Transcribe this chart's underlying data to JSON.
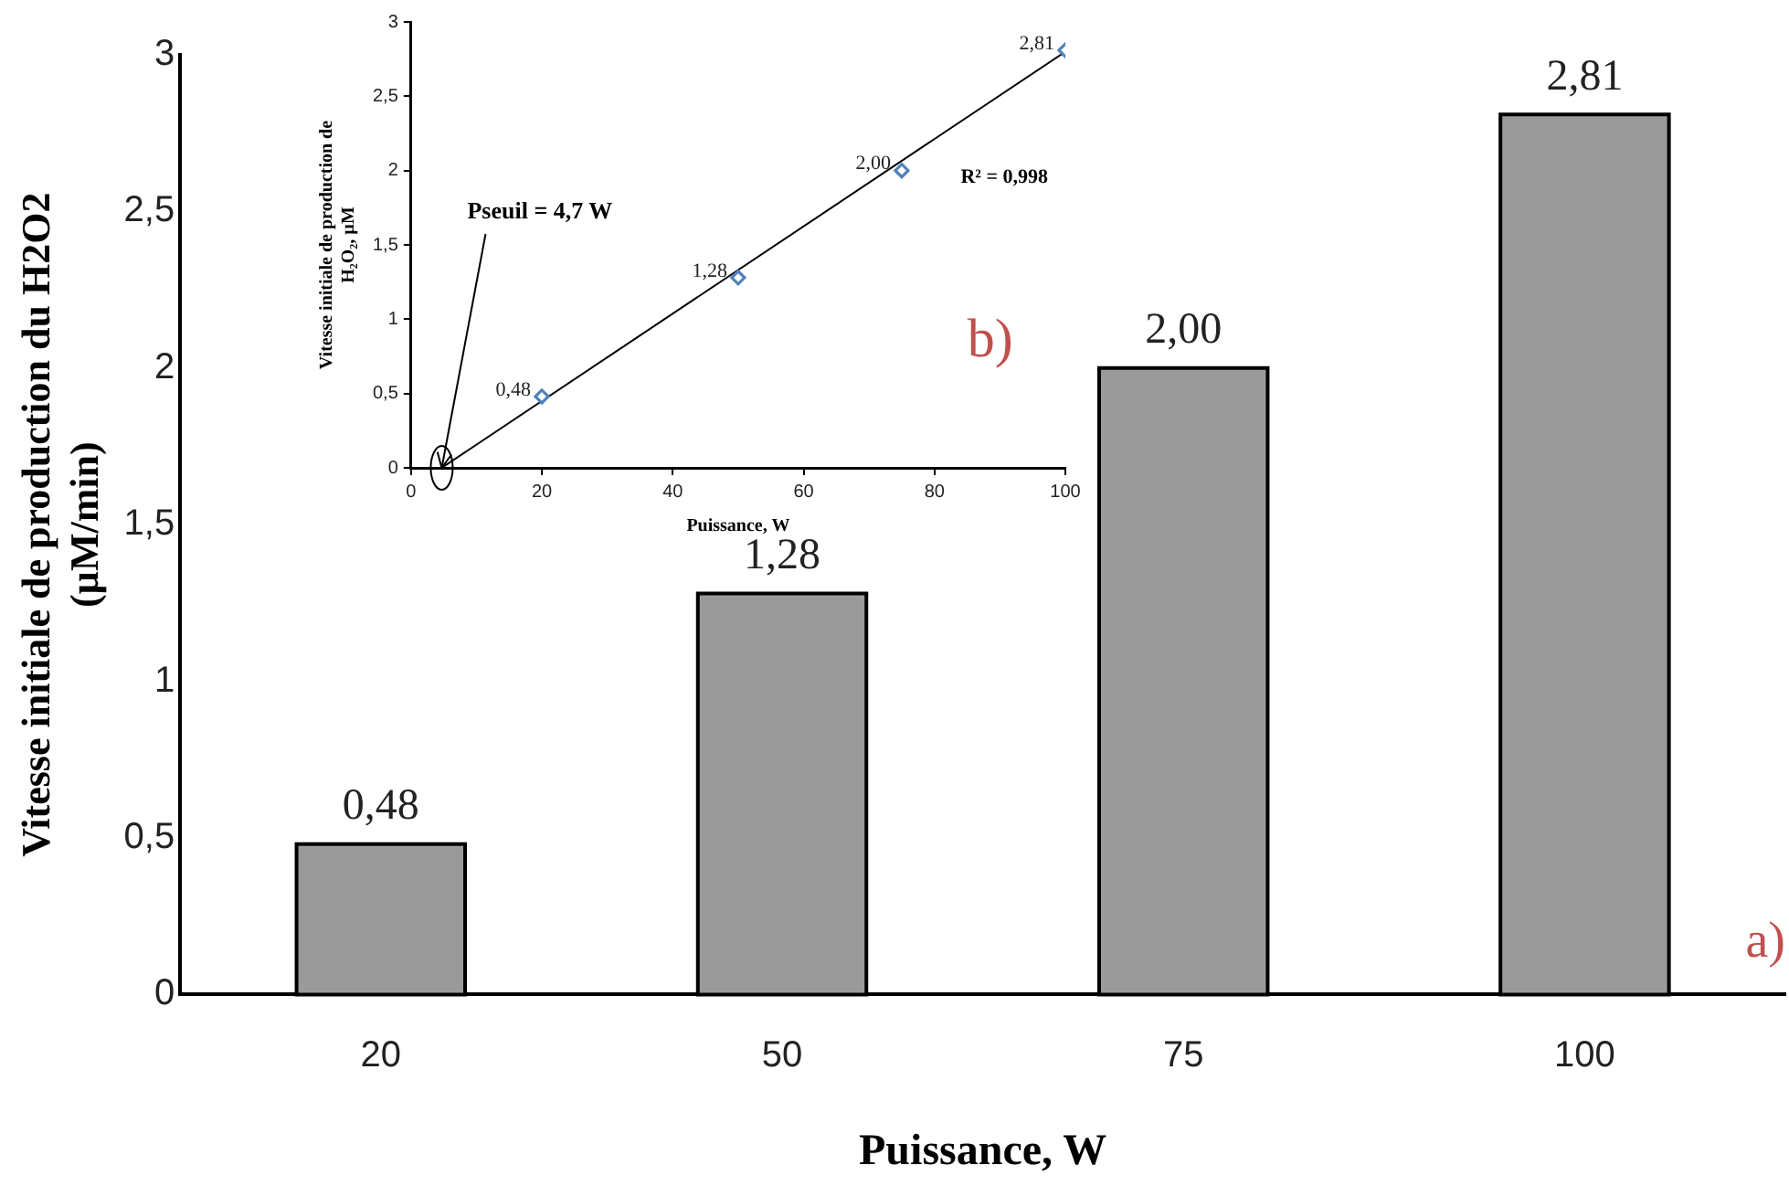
{
  "chart_data": [
    {
      "type": "bar",
      "categories": [
        "20",
        "50",
        "75",
        "100"
      ],
      "values": [
        0.48,
        1.28,
        2.0,
        2.81
      ],
      "color": "#9a9a9a",
      "value_labels": [
        "0,48",
        "1,28",
        "2,00",
        "2,81"
      ],
      "xlabel": "Puissance, W",
      "ylabel": "Vitesse initiale de production du H2O2 (µM/min)",
      "ylim": [
        0,
        3
      ],
      "yticks": [
        0,
        {
          "value": 0.5,
          "label": "0,5"
        },
        1,
        {
          "value": 1.5,
          "label": "1,5"
        },
        2,
        {
          "value": 2.5,
          "label": "2,5"
        },
        3
      ],
      "annotations": [
        "a)"
      ]
    },
    {
      "type": "scatter",
      "series": [
        {
          "type": "scatter",
          "marker": "diamond",
          "color": "#4f81bd",
          "x": [
            20,
            50,
            75,
            100
          ],
          "values": [
            0.48,
            1.28,
            2.0,
            2.81
          ],
          "value_labels": [
            "0,48",
            "1,28",
            "2,00",
            "2,81"
          ]
        },
        {
          "type": "line",
          "color": "#000000",
          "x": [
            4.7,
            100
          ],
          "values": [
            0,
            2.8
          ]
        }
      ],
      "xlabel": "Puissance, W",
      "ylabel": "Vitesse initiale de production de H₂O₂, µM",
      "xlim": [
        0,
        100
      ],
      "xticks": [
        0,
        20,
        40,
        60,
        80,
        100
      ],
      "ylim": [
        0,
        3
      ],
      "yticks": [
        0,
        {
          "value": 0.5,
          "label": "0,5"
        },
        1,
        {
          "value": 1.5,
          "label": "1,5"
        },
        2,
        {
          "value": 2.5,
          "label": "2,5"
        },
        3
      ],
      "annotations": [
        {
          "text": "Pseuil = 4,7 W",
          "x": 4.7,
          "y": 0
        },
        "R² = 0,998",
        "b)"
      ]
    }
  ]
}
